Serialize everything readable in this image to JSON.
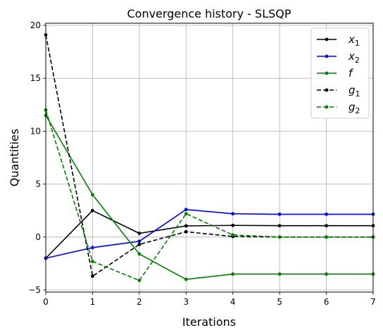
{
  "chart_data": {
    "type": "line",
    "title": "Convergence history - SLSQP",
    "xlabel": "Iterations",
    "ylabel": "Quantities",
    "xlim": [
      0,
      7
    ],
    "ylim": [
      -5.2,
      20.2
    ],
    "xticks": [
      0,
      1,
      2,
      3,
      4,
      5,
      6,
      7
    ],
    "yticks": [
      -5,
      0,
      5,
      10,
      15,
      20
    ],
    "xtick_labels": [
      "0",
      "1",
      "2",
      "3",
      "4",
      "5",
      "6",
      "7"
    ],
    "ytick_labels": [
      "−5",
      "0",
      "5",
      "10",
      "15",
      "20"
    ],
    "grid": true,
    "legend_position": "top-right",
    "x": [
      0,
      1,
      2,
      3,
      4,
      5,
      6,
      7
    ],
    "series": [
      {
        "name": "x",
        "sub": "1",
        "color": "#000000",
        "dash": "solid",
        "values": [
          -2.0,
          2.5,
          0.35,
          1.05,
          1.1,
          1.07,
          1.07,
          1.07
        ]
      },
      {
        "name": "x",
        "sub": "2",
        "color": "#0000ff",
        "dash": "solid",
        "values": [
          -2.0,
          -1.0,
          -0.4,
          2.6,
          2.2,
          2.15,
          2.15,
          2.15
        ]
      },
      {
        "name": "f",
        "sub": "",
        "color": "#008000",
        "dash": "solid",
        "values": [
          11.5,
          4.0,
          -1.6,
          -4.0,
          -3.5,
          -3.5,
          -3.5,
          -3.5
        ]
      },
      {
        "name": "g",
        "sub": "1",
        "color": "#000000",
        "dash": "dashed",
        "values": [
          19.1,
          -3.7,
          -0.7,
          0.5,
          0.05,
          0.0,
          0.0,
          0.0
        ]
      },
      {
        "name": "g",
        "sub": "2",
        "color": "#008000",
        "dash": "dashed",
        "values": [
          12.0,
          -2.3,
          -4.1,
          2.2,
          0.2,
          0.0,
          0.0,
          0.0
        ]
      }
    ]
  }
}
